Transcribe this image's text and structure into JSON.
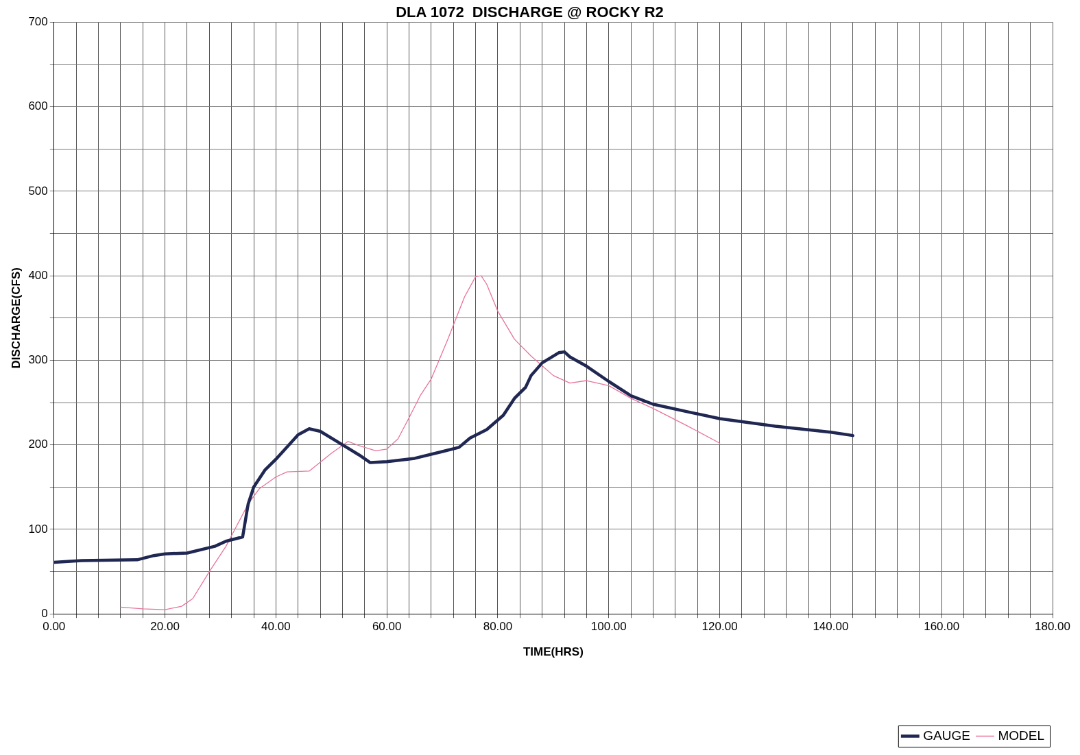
{
  "chart_data": {
    "type": "line",
    "title": "DLA 1072  DISCHARGE @ ROCKY R2",
    "xlabel": "TIME(HRS)",
    "ylabel": "DISCHARGE(CFS)",
    "xlim": [
      0,
      180
    ],
    "xticks": [
      {
        "value": 0,
        "label": "0.00"
      },
      {
        "value": 4,
        "label": null
      },
      {
        "value": 8,
        "label": null
      },
      {
        "value": 12,
        "label": null
      },
      {
        "value": 16,
        "label": null
      },
      {
        "value": 20,
        "label": "20.00"
      },
      {
        "value": 24,
        "label": null
      },
      {
        "value": 28,
        "label": null
      },
      {
        "value": 32,
        "label": null
      },
      {
        "value": 36,
        "label": null
      },
      {
        "value": 40,
        "label": "40.00"
      },
      {
        "value": 44,
        "label": null
      },
      {
        "value": 48,
        "label": null
      },
      {
        "value": 52,
        "label": null
      },
      {
        "value": 56,
        "label": null
      },
      {
        "value": 60,
        "label": "60.00"
      },
      {
        "value": 64,
        "label": null
      },
      {
        "value": 68,
        "label": null
      },
      {
        "value": 72,
        "label": null
      },
      {
        "value": 76,
        "label": null
      },
      {
        "value": 80,
        "label": "80.00"
      },
      {
        "value": 84,
        "label": null
      },
      {
        "value": 88,
        "label": null
      },
      {
        "value": 92,
        "label": null
      },
      {
        "value": 96,
        "label": null
      },
      {
        "value": 100,
        "label": "100.00"
      },
      {
        "value": 104,
        "label": null
      },
      {
        "value": 108,
        "label": null
      },
      {
        "value": 112,
        "label": null
      },
      {
        "value": 116,
        "label": null
      },
      {
        "value": 120,
        "label": "120.00"
      },
      {
        "value": 124,
        "label": null
      },
      {
        "value": 128,
        "label": null
      },
      {
        "value": 132,
        "label": null
      },
      {
        "value": 136,
        "label": null
      },
      {
        "value": 140,
        "label": "140.00"
      },
      {
        "value": 144,
        "label": null
      },
      {
        "value": 148,
        "label": null
      },
      {
        "value": 152,
        "label": null
      },
      {
        "value": 156,
        "label": null
      },
      {
        "value": 160,
        "label": "160.00"
      },
      {
        "value": 164,
        "label": null
      },
      {
        "value": 168,
        "label": null
      },
      {
        "value": 172,
        "label": null
      },
      {
        "value": 176,
        "label": null
      },
      {
        "value": 180,
        "label": "180.00"
      }
    ],
    "ylim": [
      0,
      700
    ],
    "yticks": [
      0,
      {
        "value": 50,
        "label": null
      },
      100,
      {
        "value": 150,
        "label": null
      },
      200,
      {
        "value": 250,
        "label": null
      },
      300,
      {
        "value": 350,
        "label": null
      },
      400,
      {
        "value": 450,
        "label": null
      },
      500,
      {
        "value": 550,
        "label": null
      },
      600,
      {
        "value": 650,
        "label": null
      },
      700
    ],
    "grid": true,
    "legend": "bottom right",
    "marker": "none",
    "line_style": "solid",
    "series": [
      {
        "name": "GAUGE",
        "color": "#1f2752",
        "x": [
          0,
          5,
          15,
          18,
          20,
          24,
          29,
          31,
          34,
          35,
          36,
          38,
          40,
          44,
          46,
          48,
          52,
          55,
          57,
          60,
          65,
          70,
          73,
          75,
          78,
          81,
          83,
          85,
          86,
          88,
          91,
          92,
          93,
          96,
          100,
          104,
          108,
          115,
          120,
          130,
          140,
          144
        ],
        "values": [
          61,
          63,
          64,
          69,
          71,
          72,
          80,
          86,
          91,
          130,
          150,
          170,
          183,
          212,
          219,
          216,
          200,
          188,
          179,
          180,
          184,
          192,
          197,
          208,
          218,
          235,
          255,
          268,
          282,
          297,
          309,
          310,
          304,
          293,
          275,
          258,
          248,
          238,
          231,
          222,
          215,
          211
        ]
      },
      {
        "name": "MODEL",
        "color": "#e8739a",
        "x": [
          12,
          16,
          20,
          23,
          25,
          28,
          31,
          33,
          35,
          37,
          40,
          42,
          46,
          50,
          53,
          55,
          58,
          60,
          62,
          64,
          66,
          68,
          71,
          74,
          76,
          77,
          78,
          80,
          83,
          86,
          90,
          93,
          96,
          100,
          104,
          108,
          114,
          120
        ],
        "values": [
          8,
          6,
          5,
          9,
          18,
          50,
          80,
          105,
          130,
          148,
          162,
          168,
          169,
          190,
          204,
          199,
          193,
          195,
          207,
          232,
          258,
          278,
          325,
          375,
          399,
          400,
          390,
          358,
          325,
          305,
          282,
          273,
          276,
          270,
          255,
          243,
          223,
          202
        ]
      }
    ]
  }
}
